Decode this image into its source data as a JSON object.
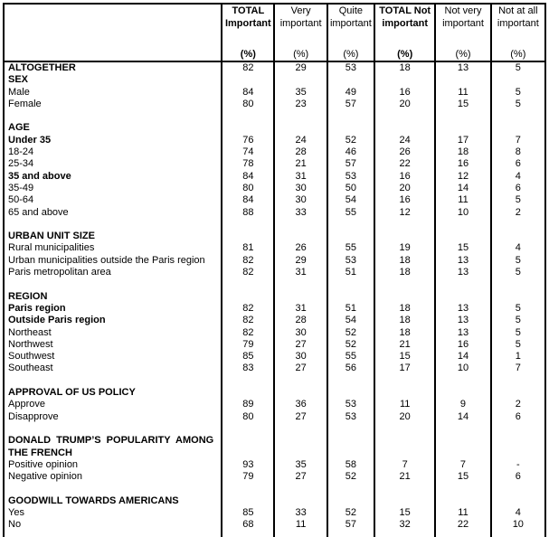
{
  "table": {
    "columns": [
      {
        "lines": [
          "TOTAL",
          "Important"
        ],
        "pct": "(%)",
        "bold": true
      },
      {
        "lines": [
          "Very",
          "important"
        ],
        "pct": "(%)",
        "bold": false
      },
      {
        "lines": [
          "Quite",
          "important"
        ],
        "pct": "(%)",
        "bold": false
      },
      {
        "lines": [
          "TOTAL Not",
          "important"
        ],
        "pct": "(%)",
        "bold": true
      },
      {
        "lines": [
          "Not very",
          "important"
        ],
        "pct": "(%)",
        "bold": false
      },
      {
        "lines": [
          "Not at all",
          "important"
        ],
        "pct": "(%)",
        "bold": false
      }
    ],
    "rows": [
      {
        "label": "ALTOGETHER",
        "bold": true,
        "values": [
          "82",
          "29",
          "53",
          "18",
          "13",
          "5"
        ]
      },
      {
        "label": "SEX",
        "bold": true,
        "values": [
          "",
          "",
          "",
          "",
          "",
          ""
        ]
      },
      {
        "label": "Male",
        "bold": false,
        "values": [
          "84",
          "35",
          "49",
          "16",
          "11",
          "5"
        ]
      },
      {
        "label": "Female",
        "bold": false,
        "values": [
          "80",
          "23",
          "57",
          "20",
          "15",
          "5"
        ]
      },
      {
        "label": "",
        "bold": false,
        "values": [
          "",
          "",
          "",
          "",
          "",
          ""
        ]
      },
      {
        "label": "AGE",
        "bold": true,
        "values": [
          "",
          "",
          "",
          "",
          "",
          ""
        ]
      },
      {
        "label": "Under 35",
        "bold": true,
        "values": [
          "76",
          "24",
          "52",
          "24",
          "17",
          "7"
        ]
      },
      {
        "label": "18-24",
        "bold": false,
        "values": [
          "74",
          "28",
          "46",
          "26",
          "18",
          "8"
        ]
      },
      {
        "label": "25-34",
        "bold": false,
        "values": [
          "78",
          "21",
          "57",
          "22",
          "16",
          "6"
        ]
      },
      {
        "label": "35 and above",
        "bold": true,
        "values": [
          "84",
          "31",
          "53",
          "16",
          "12",
          "4"
        ]
      },
      {
        "label": "35-49",
        "bold": false,
        "values": [
          "80",
          "30",
          "50",
          "20",
          "14",
          "6"
        ]
      },
      {
        "label": "50-64",
        "bold": false,
        "values": [
          "84",
          "30",
          "54",
          "16",
          "11",
          "5"
        ]
      },
      {
        "label": "65 and above",
        "bold": false,
        "values": [
          "88",
          "33",
          "55",
          "12",
          "10",
          "2"
        ]
      },
      {
        "label": "",
        "bold": false,
        "values": [
          "",
          "",
          "",
          "",
          "",
          ""
        ]
      },
      {
        "label": "URBAN UNIT SIZE",
        "bold": true,
        "values": [
          "",
          "",
          "",
          "",
          "",
          ""
        ]
      },
      {
        "label": "Rural municipalities",
        "bold": false,
        "values": [
          "81",
          "26",
          "55",
          "19",
          "15",
          "4"
        ]
      },
      {
        "label": "Urban municipalities outside the Paris region",
        "bold": false,
        "values": [
          "82",
          "29",
          "53",
          "18",
          "13",
          "5"
        ]
      },
      {
        "label": "Paris metropolitan area",
        "bold": false,
        "values": [
          "82",
          "31",
          "51",
          "18",
          "13",
          "5"
        ]
      },
      {
        "label": "",
        "bold": false,
        "values": [
          "",
          "",
          "",
          "",
          "",
          ""
        ]
      },
      {
        "label": "REGION",
        "bold": true,
        "values": [
          "",
          "",
          "",
          "",
          "",
          ""
        ]
      },
      {
        "label": "Paris region",
        "bold": true,
        "values": [
          "82",
          "31",
          "51",
          "18",
          "13",
          "5"
        ]
      },
      {
        "label": "Outside Paris region",
        "bold": true,
        "values": [
          "82",
          "28",
          "54",
          "18",
          "13",
          "5"
        ]
      },
      {
        "label": "Northeast",
        "bold": false,
        "values": [
          "82",
          "30",
          "52",
          "18",
          "13",
          "5"
        ]
      },
      {
        "label": "Northwest",
        "bold": false,
        "values": [
          "79",
          "27",
          "52",
          "21",
          "16",
          "5"
        ]
      },
      {
        "label": "Southwest",
        "bold": false,
        "values": [
          "85",
          "30",
          "55",
          "15",
          "14",
          "1"
        ]
      },
      {
        "label": "Southeast",
        "bold": false,
        "values": [
          "83",
          "27",
          "56",
          "17",
          "10",
          "7"
        ]
      },
      {
        "label": "",
        "bold": false,
        "values": [
          "",
          "",
          "",
          "",
          "",
          ""
        ]
      },
      {
        "label": "APPROVAL OF US POLICY",
        "bold": true,
        "values": [
          "",
          "",
          "",
          "",
          "",
          ""
        ]
      },
      {
        "label": "Approve",
        "bold": false,
        "values": [
          "89",
          "36",
          "53",
          "11",
          "9",
          "2"
        ]
      },
      {
        "label": "Disapprove",
        "bold": false,
        "values": [
          "80",
          "27",
          "53",
          "20",
          "14",
          "6"
        ]
      },
      {
        "label": "",
        "bold": false,
        "values": [
          "",
          "",
          "",
          "",
          "",
          ""
        ]
      },
      {
        "label": "DONALD TRUMP’S POPULARITY AMONG THE FRENCH",
        "bold": true,
        "justify": true,
        "values": [
          "",
          "",
          "",
          "",
          "",
          ""
        ]
      },
      {
        "label": "Positive opinion",
        "bold": false,
        "values": [
          "93",
          "35",
          "58",
          "7",
          "7",
          "-"
        ]
      },
      {
        "label": "Negative opinion",
        "bold": false,
        "values": [
          "79",
          "27",
          "52",
          "21",
          "15",
          "6"
        ]
      },
      {
        "label": "",
        "bold": false,
        "values": [
          "",
          "",
          "",
          "",
          "",
          ""
        ]
      },
      {
        "label": "GOODWILL TOWARDS AMERICANS",
        "bold": true,
        "values": [
          "",
          "",
          "",
          "",
          "",
          ""
        ]
      },
      {
        "label": "Yes",
        "bold": false,
        "values": [
          "85",
          "33",
          "52",
          "15",
          "11",
          "4"
        ]
      },
      {
        "label": "No",
        "bold": false,
        "values": [
          "68",
          "11",
          "57",
          "32",
          "22",
          "10"
        ]
      },
      {
        "label": "",
        "bold": false,
        "values": [
          "",
          "",
          "",
          "",
          "",
          ""
        ]
      }
    ]
  }
}
